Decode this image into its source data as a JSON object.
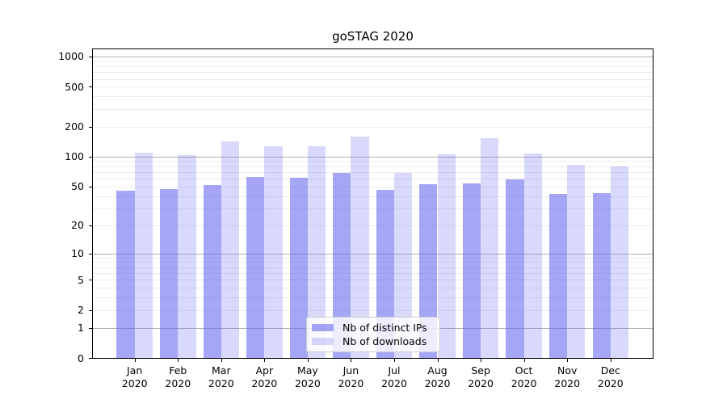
{
  "chart_data": {
    "type": "bar",
    "title": "goSTAG 2020",
    "categories": [
      "Jan 2020",
      "Feb 2020",
      "Mar 2020",
      "Apr 2020",
      "May 2020",
      "Jun 2020",
      "Jul 2020",
      "Aug 2020",
      "Sep 2020",
      "Oct 2020",
      "Nov 2020",
      "Dec 2020"
    ],
    "series": [
      {
        "name": "Nb of distinct IPs",
        "values": [
          45,
          47,
          52,
          62,
          61,
          68,
          46,
          53,
          54,
          59,
          42,
          43
        ],
        "color_rgba": "rgba(102,102,240,0.58)",
        "apparent_color": "#a6a6f6"
      },
      {
        "name": "Nb of downloads",
        "values": [
          110,
          103,
          143,
          127,
          126,
          159,
          68,
          106,
          153,
          108,
          82,
          80
        ],
        "color_rgba": "rgba(102,102,240,0.25)",
        "apparent_color": "#d9d9f8"
      }
    ],
    "xlabel": "",
    "ylabel": "",
    "yscale": "log1p",
    "yticks": [
      0,
      1,
      2,
      5,
      10,
      20,
      50,
      100,
      200,
      500,
      1000
    ],
    "ylim": [
      0,
      1240
    ],
    "grid": true,
    "legend_position": "lower center",
    "colors": {
      "grid_major": "#b0b0b0",
      "grid_minor": "#ececec",
      "frame": "#000000",
      "background": "#ffffff"
    }
  }
}
